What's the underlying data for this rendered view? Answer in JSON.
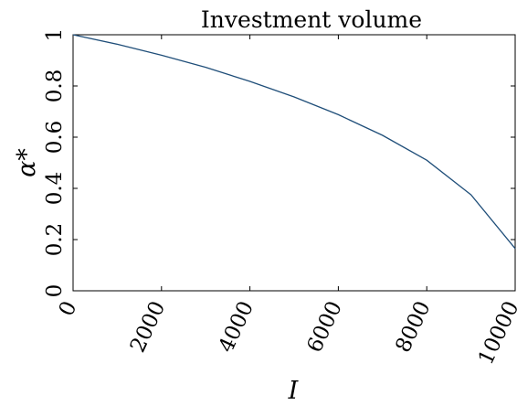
{
  "chart_data": {
    "type": "line",
    "title": "Investment volume",
    "xlabel": "I",
    "ylabel": "α*",
    "xlim": [
      0,
      10000
    ],
    "ylim": [
      0,
      1
    ],
    "xticks": [
      0,
      2000,
      4000,
      6000,
      8000,
      10000
    ],
    "yticks": [
      0,
      0.2,
      0.4,
      0.6,
      0.8,
      1
    ],
    "xtick_labels": [
      "0",
      "2000",
      "4000",
      "6000",
      "8000",
      "10000"
    ],
    "ytick_labels": [
      "0",
      "0.2",
      "0.4",
      "0.6",
      "0.8",
      "1"
    ],
    "grid": false,
    "line_color": "#1f4e79",
    "series": [
      {
        "x": [
          0,
          1000,
          2000,
          3000,
          4000,
          5000,
          6000,
          7000,
          8000,
          9000,
          10000
        ],
        "y": [
          1.0,
          0.963,
          0.92,
          0.873,
          0.818,
          0.757,
          0.688,
          0.607,
          0.51,
          0.375,
          0.165
        ]
      }
    ]
  }
}
